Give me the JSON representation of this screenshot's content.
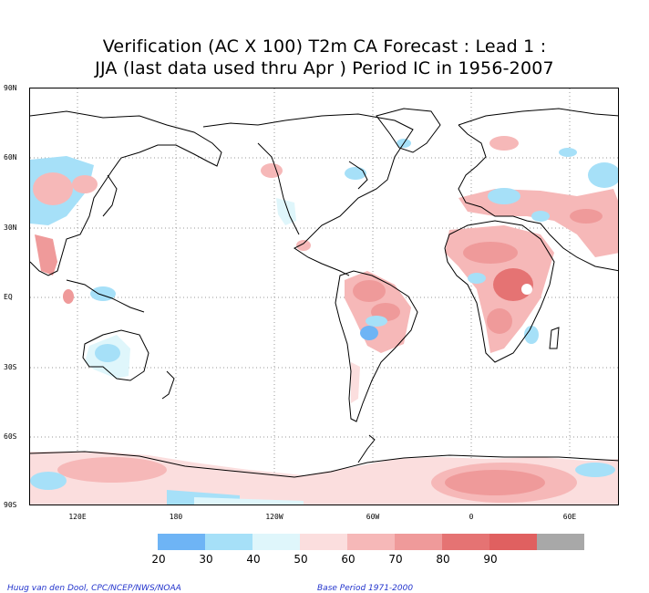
{
  "title_line1": "Verification (AC X 100) T2m CA Forecast : Lead 1 :",
  "title_line2": "JJA (last data used thru Apr ) Period IC in 1956-2007",
  "lat_labels": [
    "90N",
    "60N",
    "30N",
    "EQ",
    "30S",
    "60S",
    "90S"
  ],
  "lon_labels": [
    "120E",
    "180",
    "120W",
    "60W",
    "0",
    "60E"
  ],
  "legend": {
    "labels": [
      "20",
      "30",
      "40",
      "50",
      "60",
      "70",
      "80",
      "90"
    ],
    "colors": [
      "#6eb4f5",
      "#a6e0f8",
      "#dff6fb",
      "#fbdede",
      "#f6b8b8",
      "#ef9a9a",
      "#e57373",
      "#e06060",
      "#a8a8a8"
    ]
  },
  "credit_left": "Huug van den Dool, CPC/NCEP/NWS/NOAA",
  "credit_right": "Base Period 1971-2000"
}
